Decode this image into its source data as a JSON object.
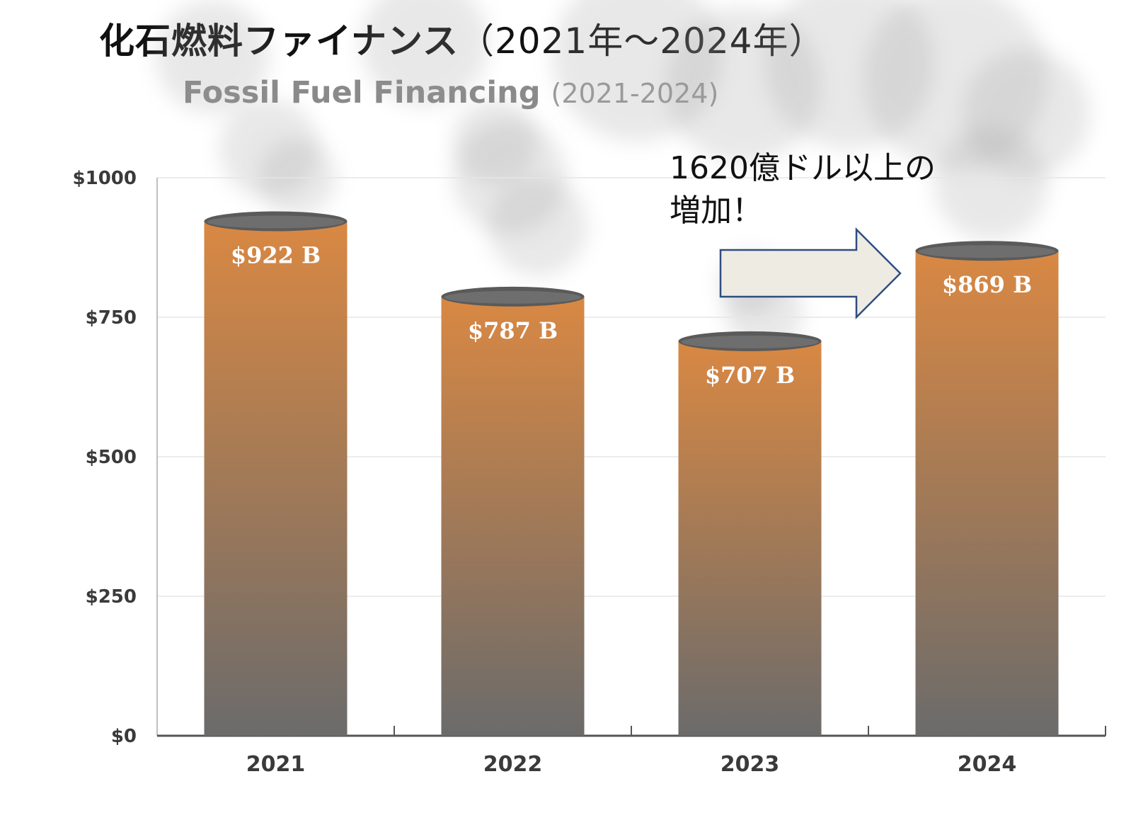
{
  "header": {
    "jp_title_main": "化石燃料ファイナンス",
    "jp_title_years": "（2021年～2024年）",
    "en_title_main": "Fossil Fuel Financing",
    "en_title_years": "(2021-2024)"
  },
  "annotation": {
    "line1": "1620億ドル以上の",
    "line2": "増加！"
  },
  "colors": {
    "bar_top": "#d98843",
    "bar_bottom": "#6b6b6b",
    "bar_cap": "#5a5a5a",
    "arrow_fill": "#eeebe3",
    "arrow_stroke": "#2f4d80",
    "smoke": "#9a9a9a"
  },
  "icons": {
    "arrow": "right-arrow-icon",
    "smoke": "smoke-plume"
  },
  "chart_data": {
    "type": "bar",
    "categories": [
      "2021",
      "2022",
      "2023",
      "2024"
    ],
    "values": [
      922,
      787,
      707,
      869
    ],
    "value_labels": [
      "$922 B",
      "$787 B",
      "$707 B",
      "$869 B"
    ],
    "y_ticks": [
      0,
      250,
      500,
      750,
      1000
    ],
    "y_tick_labels": [
      "$0",
      "$250",
      "$500",
      "$750",
      "$1000"
    ],
    "ylim": [
      0,
      1000
    ],
    "grid": true
  }
}
